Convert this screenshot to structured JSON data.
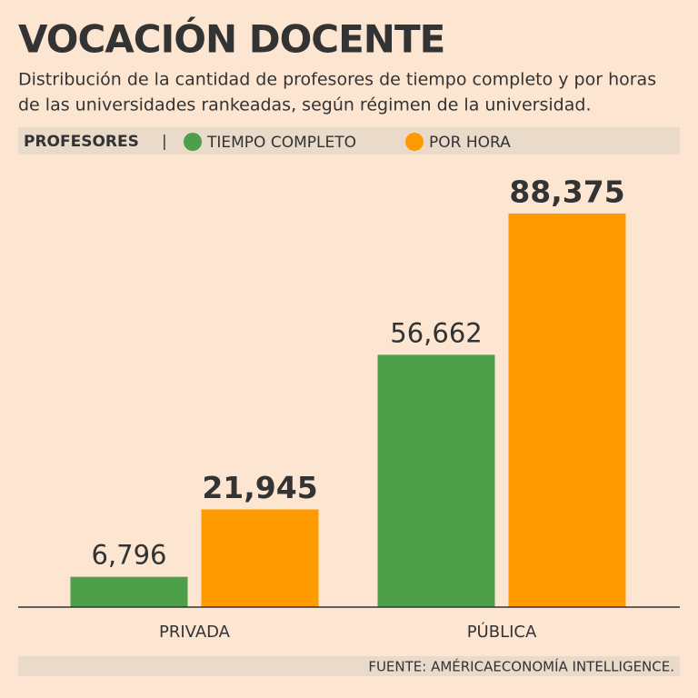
{
  "chart_data": {
    "type": "bar",
    "title": "VOCACIÓN DOCENTE",
    "subtitle": [
      "Distribución de la cantidad de profesores de tiempo completo y por horas",
      "de las universidades rankeadas, según régimen de la universidad."
    ],
    "legend_title": "PROFESORES",
    "categories": [
      "PRIVADA",
      "PÚBLICA"
    ],
    "series": [
      {
        "name": "TIEMPO COMPLETO",
        "color": "#4e9f4a",
        "values": [
          6796,
          56662
        ],
        "value_labels": [
          "6,796",
          "56,662"
        ]
      },
      {
        "name": "POR HORA",
        "color": "#ff9a00",
        "values": [
          21945,
          88375
        ],
        "value_labels": [
          "21,945",
          "88,375"
        ]
      }
    ],
    "ylim": [
      0,
      90000
    ],
    "source": "FUENTE: AMÉRICAECONOMÍA INTELLIGENCE."
  }
}
